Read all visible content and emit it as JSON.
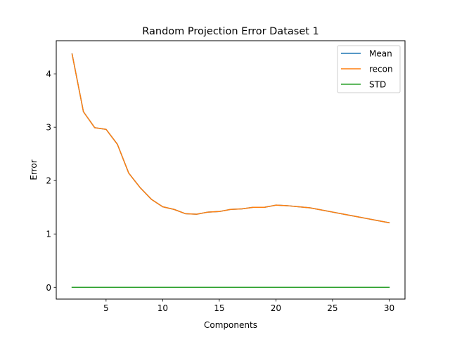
{
  "chart_data": {
    "type": "line",
    "title": "Random Projection Error Dataset 1",
    "xlabel": "Components",
    "ylabel": "Error",
    "xlim": [
      0.6,
      31.4
    ],
    "ylim": [
      -0.22,
      4.62
    ],
    "xticks": [
      5,
      10,
      15,
      20,
      25,
      30
    ],
    "yticks": [
      0,
      1,
      2,
      3,
      4
    ],
    "legend_position": "top-right",
    "grid": false,
    "x": [
      2,
      3,
      4,
      5,
      6,
      7,
      8,
      9,
      10,
      11,
      12,
      13,
      14,
      15,
      16,
      17,
      18,
      19,
      20,
      21,
      22,
      23,
      24,
      25,
      26,
      27,
      28,
      29,
      30
    ],
    "series": [
      {
        "name": "Mean",
        "color": "#1f77b4",
        "values": [
          4.37,
          3.29,
          2.99,
          2.96,
          2.68,
          2.14,
          1.87,
          1.65,
          1.51,
          1.46,
          1.38,
          1.37,
          1.41,
          1.42,
          1.46,
          1.47,
          1.5,
          1.5,
          1.54,
          1.53,
          1.51,
          1.49,
          1.45,
          1.41,
          1.37,
          1.33,
          1.29,
          1.25,
          1.21
        ]
      },
      {
        "name": "recon",
        "color": "#ff7f0e",
        "values": [
          4.37,
          3.29,
          2.99,
          2.96,
          2.68,
          2.14,
          1.87,
          1.65,
          1.51,
          1.46,
          1.38,
          1.37,
          1.41,
          1.42,
          1.46,
          1.47,
          1.5,
          1.5,
          1.54,
          1.53,
          1.51,
          1.49,
          1.45,
          1.41,
          1.37,
          1.33,
          1.29,
          1.25,
          1.21
        ]
      },
      {
        "name": "STD",
        "color": "#2ca02c",
        "values": [
          0,
          0,
          0,
          0,
          0,
          0,
          0,
          0,
          0,
          0,
          0,
          0,
          0,
          0,
          0,
          0,
          0,
          0,
          0,
          0,
          0,
          0,
          0,
          0,
          0,
          0,
          0,
          0,
          0
        ]
      }
    ]
  }
}
